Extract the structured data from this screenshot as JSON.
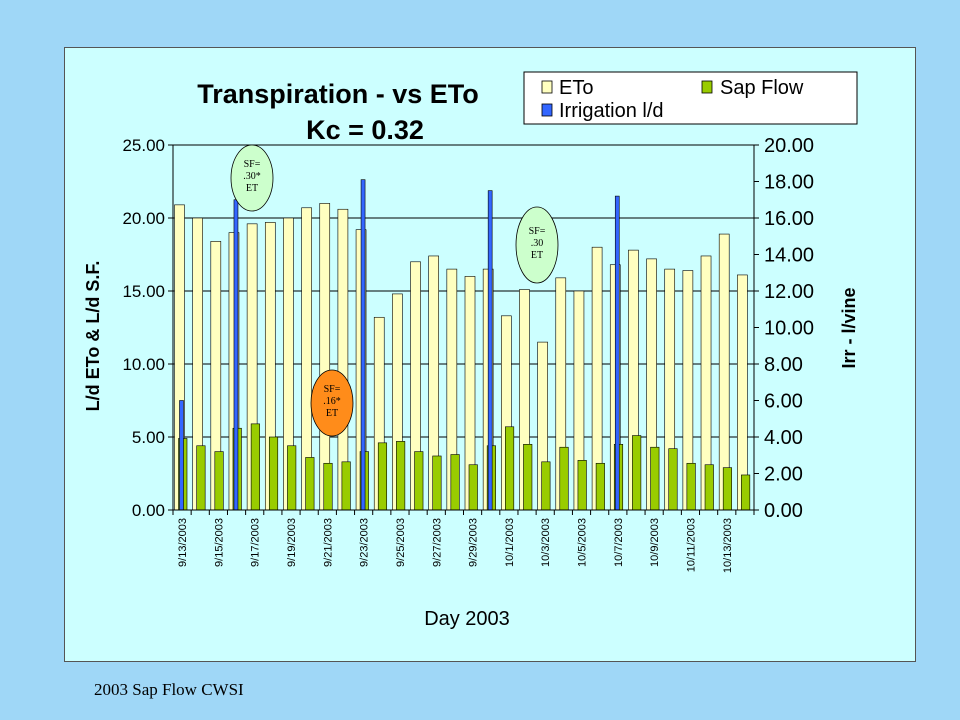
{
  "footer": "2003 Sap Flow CWSI",
  "colors": {
    "eto": "#ffffc0",
    "sap": "#99cc00",
    "irr": "#3366ff",
    "grid": "#000000",
    "background": "#ccffff"
  },
  "chart_data": {
    "type": "bar",
    "title": "Transpiration - vs ETo",
    "subtitle": "Kc = 0.32",
    "xlabel": "Day 2003",
    "ylabel": "L/d ETo & L/d S.F.",
    "y2label": "Irr - l/vine",
    "ylim": [
      0,
      25
    ],
    "y2lim": [
      0,
      20
    ],
    "yticks": [
      "0.00",
      "5.00",
      "10.00",
      "15.00",
      "20.00",
      "25.00"
    ],
    "y2ticks": [
      "0.00",
      "2.00",
      "4.00",
      "6.00",
      "8.00",
      "10.00",
      "12.00",
      "14.00",
      "16.00",
      "18.00",
      "20.00"
    ],
    "categories": [
      "9/13/2003",
      "9/14/2003",
      "9/15/2003",
      "9/16/2003",
      "9/17/2003",
      "9/18/2003",
      "9/19/2003",
      "9/20/2003",
      "9/21/2003",
      "9/22/2003",
      "9/23/2003",
      "9/24/2003",
      "9/25/2003",
      "9/26/2003",
      "9/27/2003",
      "9/28/2003",
      "9/29/2003",
      "9/30/2003",
      "10/1/2003",
      "10/2/2003",
      "10/3/2003",
      "10/4/2003",
      "10/5/2003",
      "10/6/2003",
      "10/7/2003",
      "10/8/2003",
      "10/9/2003",
      "10/10/2003",
      "10/11/2003",
      "10/12/2003",
      "10/13/2003",
      "10/14/2003"
    ],
    "tick_labels": [
      "9/13/2003",
      "9/15/2003",
      "9/17/2003",
      "9/19/2003",
      "9/21/2003",
      "9/23/2003",
      "9/25/2003",
      "9/27/2003",
      "9/29/2003",
      "10/1/2003",
      "10/3/2003",
      "10/5/2003",
      "10/7/2003",
      "10/9/2003",
      "10/11/2003",
      "10/13/2003"
    ],
    "legend_position": "top-right",
    "grid": "horizontal",
    "series": [
      {
        "name": "ETo",
        "axis": "left",
        "values": [
          20.9,
          20.0,
          18.4,
          19.0,
          19.6,
          19.7,
          20.0,
          20.7,
          21.0,
          20.6,
          19.2,
          13.2,
          14.8,
          17.0,
          17.4,
          16.5,
          16.0,
          16.5,
          13.3,
          15.1,
          11.5,
          15.9,
          15.0,
          18.0,
          16.8,
          17.8,
          17.2,
          16.5,
          16.4,
          17.4,
          18.9,
          16.1
        ]
      },
      {
        "name": "Sap Flow",
        "axis": "left",
        "values": [
          4.9,
          4.4,
          4.0,
          5.6,
          5.9,
          5.0,
          4.4,
          3.6,
          3.2,
          3.3,
          4.0,
          4.6,
          4.7,
          4.0,
          3.7,
          3.8,
          3.1,
          4.4,
          5.7,
          4.5,
          3.3,
          4.3,
          3.4,
          3.2,
          4.5,
          5.1,
          4.3,
          4.2,
          3.2,
          3.1,
          2.9,
          2.4
        ]
      },
      {
        "name": "Irrigation l/d",
        "axis": "right",
        "values": [
          6.0,
          0,
          0,
          17.0,
          0,
          0,
          0,
          0,
          0,
          0,
          18.1,
          0,
          0,
          0,
          0,
          0,
          0,
          17.5,
          0,
          0,
          0,
          0,
          0,
          0,
          17.2,
          0,
          0,
          0,
          0,
          0,
          0,
          0
        ]
      }
    ],
    "annotations": [
      {
        "text": [
          "SF=",
          ".30*",
          "ET"
        ],
        "color": "#ccffcc"
      },
      {
        "text": [
          "SF=",
          ".16*",
          "ET"
        ],
        "color": "#ff8c1a"
      },
      {
        "text": [
          "SF=",
          ".30",
          "ET"
        ],
        "color": "#ccffcc"
      }
    ]
  }
}
